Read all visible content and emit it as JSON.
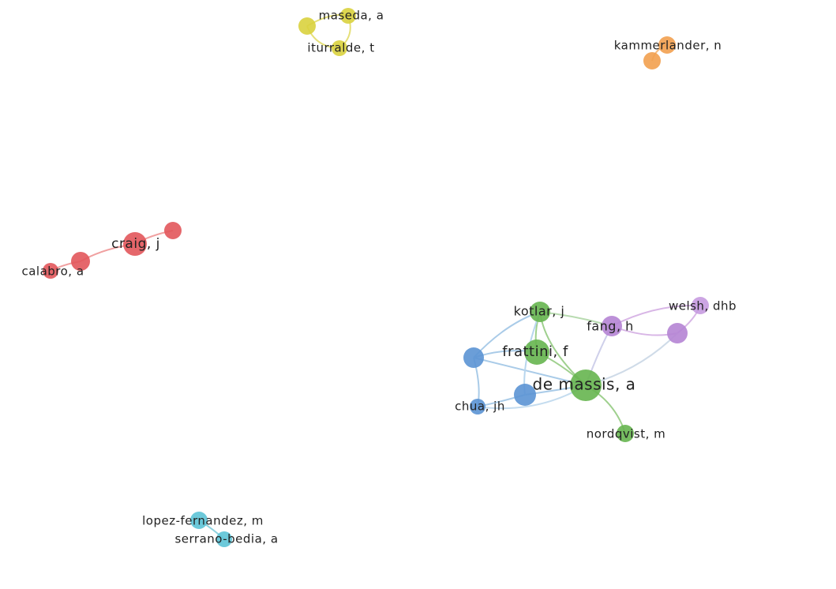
{
  "nodes": [
    {
      "label": "maseda, a"
    },
    {
      "label": "iturralde, t"
    },
    {
      "label": "kammerlander, n"
    },
    {
      "label": "craig, j"
    },
    {
      "label": "calabro, a"
    },
    {
      "label": "kotlar, j"
    },
    {
      "label": "fang, h"
    },
    {
      "label": "welsh, dhb"
    },
    {
      "label": "frattini, f"
    },
    {
      "label": "de massis, a"
    },
    {
      "label": "chua, jh"
    },
    {
      "label": "nordqvist, m"
    },
    {
      "label": "lopez-fernandez, m"
    },
    {
      "label": "serrano-bedia, a"
    }
  ]
}
